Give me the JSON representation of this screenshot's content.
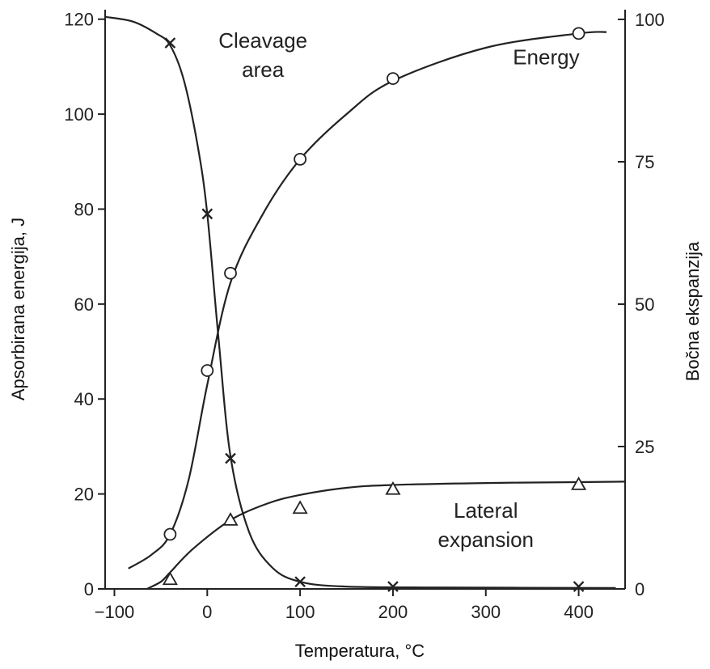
{
  "chart_data": {
    "type": "line",
    "xlabel": "Temperatura, °C",
    "ylabel_left": "Apsorbirana energija, J",
    "ylabel_right": "Bočna ekspanzija",
    "xlim": [
      -110,
      450
    ],
    "ylim_left": [
      0,
      122
    ],
    "ylim_right": [
      0,
      101.7
    ],
    "x_ticks": [
      -100,
      0,
      100,
      200,
      300,
      400
    ],
    "x_tick_labels": [
      "−100",
      "0",
      "100",
      "200",
      "300",
      "400"
    ],
    "y_left_ticks": [
      0,
      20,
      40,
      60,
      80,
      100,
      120
    ],
    "y_left_tick_labels": [
      "0",
      "20",
      "40",
      "60",
      "80",
      "100",
      "120"
    ],
    "y_right_ticks": [
      0,
      25,
      50,
      75,
      100
    ],
    "y_right_tick_labels": [
      "0",
      "25",
      "50",
      "75",
      "100"
    ],
    "series": [
      {
        "name": "Energy",
        "axis": "left",
        "marker": "circle",
        "points": [
          [
            -40,
            11.5
          ],
          [
            0,
            46
          ],
          [
            25,
            66.5
          ],
          [
            100,
            90.5
          ],
          [
            200,
            107.5
          ],
          [
            400,
            117
          ]
        ],
        "curve": [
          [
            -85,
            4.3
          ],
          [
            -60,
            7.2
          ],
          [
            -40,
            11.5
          ],
          [
            -20,
            23
          ],
          [
            0,
            43
          ],
          [
            25,
            64.5
          ],
          [
            60,
            79
          ],
          [
            100,
            90.5
          ],
          [
            150,
            100
          ],
          [
            200,
            107
          ],
          [
            300,
            114
          ],
          [
            400,
            117
          ],
          [
            430,
            117.3
          ]
        ]
      },
      {
        "name": "Cleavage area",
        "axis": "left",
        "marker": "x",
        "points": [
          [
            -40,
            115
          ],
          [
            0,
            79
          ],
          [
            25,
            27.5
          ],
          [
            100,
            1.5
          ],
          [
            200,
            0.5
          ],
          [
            400,
            0.5
          ]
        ],
        "curve": [
          [
            -110,
            120.5
          ],
          [
            -80,
            119.5
          ],
          [
            -55,
            117
          ],
          [
            -40,
            114.5
          ],
          [
            -25,
            107
          ],
          [
            -10,
            93
          ],
          [
            0,
            79
          ],
          [
            12,
            53
          ],
          [
            25,
            28
          ],
          [
            45,
            12
          ],
          [
            70,
            4.5
          ],
          [
            100,
            1.5
          ],
          [
            150,
            0.5
          ],
          [
            250,
            0.3
          ],
          [
            440,
            0.2
          ]
        ]
      },
      {
        "name": "Lateral expansion",
        "axis": "left",
        "marker": "triangle",
        "points": [
          [
            -40,
            2
          ],
          [
            25,
            14.5
          ],
          [
            100,
            17
          ],
          [
            200,
            21
          ],
          [
            400,
            22
          ]
        ],
        "curve": [
          [
            -65,
            0
          ],
          [
            -50,
            1.5
          ],
          [
            -40,
            3.5
          ],
          [
            -15,
            8.5
          ],
          [
            25,
            14.5
          ],
          [
            65,
            18
          ],
          [
            100,
            19.8
          ],
          [
            150,
            21.3
          ],
          [
            200,
            21.9
          ],
          [
            300,
            22.3
          ],
          [
            400,
            22.5
          ],
          [
            450,
            22.6
          ]
        ]
      }
    ],
    "annotations": [
      {
        "lines": [
          "Cleavage",
          "area"
        ],
        "x": 60,
        "y": 114
      },
      {
        "lines": [
          "Energy"
        ],
        "x": 365,
        "y": 110.5
      },
      {
        "lines": [
          "Lateral",
          "expansion"
        ],
        "x": 300,
        "y": 15
      }
    ]
  }
}
